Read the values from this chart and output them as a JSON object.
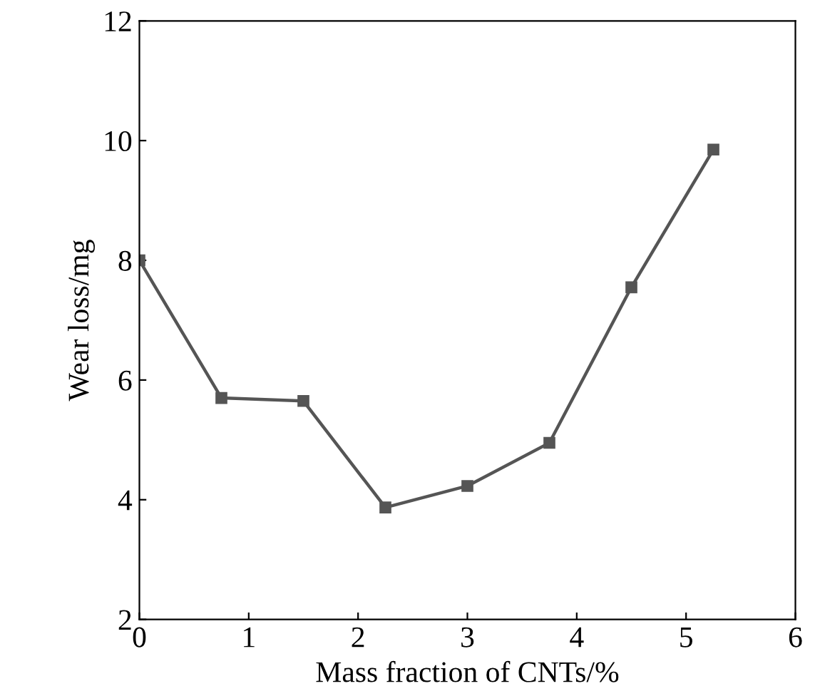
{
  "chart_data": {
    "type": "line",
    "xlabel": "Mass fraction of CNTs/%",
    "ylabel": "Wear loss/mg",
    "x": [
      0,
      0.75,
      1.5,
      2.25,
      3.0,
      3.75,
      4.5,
      5.25
    ],
    "series": [
      {
        "color": "#555555",
        "values": [
          8.0,
          5.7,
          5.65,
          3.87,
          4.23,
          4.95,
          7.55,
          9.85
        ]
      }
    ],
    "xlim": [
      0,
      6
    ],
    "ylim": [
      2,
      12
    ],
    "xticks": [
      0,
      1,
      2,
      3,
      4,
      5,
      6
    ],
    "yticks": [
      2,
      4,
      6,
      8,
      10,
      12
    ],
    "marker": "square",
    "line_style": "solid",
    "grid": false,
    "legend": false
  }
}
